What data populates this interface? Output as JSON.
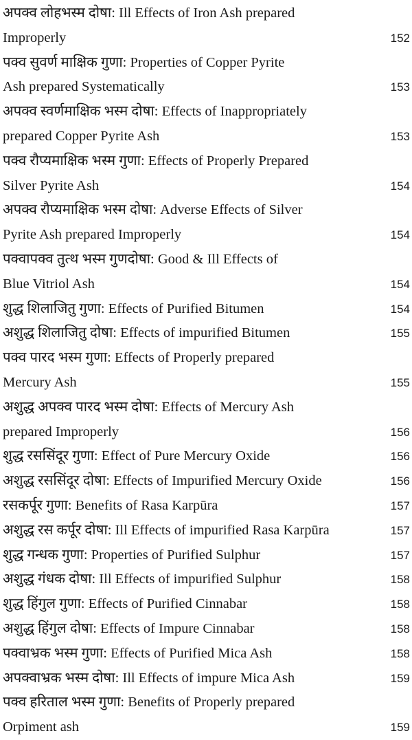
{
  "entries": [
    {
      "lines": [
        "अपक्व लोहभस्म दोषा: Ill Effects of Iron Ash prepared",
        "Improperly"
      ],
      "page": "152"
    },
    {
      "lines": [
        "पक्व सुवर्ण माक्षिक गुणा: Properties of Copper Pyrite",
        "Ash prepared Systematically"
      ],
      "page": "153"
    },
    {
      "lines": [
        "अपक्व स्वर्णमाक्षिक भस्म दोषा: Effects of Inappropriately",
        "prepared Copper Pyrite Ash"
      ],
      "page": "153"
    },
    {
      "lines": [
        "पक्व रौप्यमाक्षिक भस्म गुणा: Effects of Properly Prepared",
        "Silver Pyrite Ash"
      ],
      "page": "154"
    },
    {
      "lines": [
        "अपक्व रौप्यमाक्षिक भस्म दोषा: Adverse Effects of Silver",
        "Pyrite Ash prepared Improperly"
      ],
      "page": "154"
    },
    {
      "lines": [
        "पक्वापक्व तुत्थ भस्म गुणदोषा: Good & Ill Effects of",
        "Blue Vitriol Ash"
      ],
      "page": "154"
    },
    {
      "lines": [
        "शुद्ध शिलाजितु गुणा: Effects of Purified Bitumen"
      ],
      "page": "154"
    },
    {
      "lines": [
        "अशुद्ध शिलाजितु दोषा: Effects of impurified Bitumen"
      ],
      "page": "155"
    },
    {
      "lines": [
        "पक्व पारद भस्म गुणा: Effects of Properly prepared",
        "Mercury Ash"
      ],
      "page": "155"
    },
    {
      "lines": [
        "अशुद्ध अपक्व पारद भस्म दोषा: Effects of Mercury Ash",
        "prepared Improperly"
      ],
      "page": "156"
    },
    {
      "lines": [
        "शुद्ध रससिंदूर गुणा: Effect of Pure Mercury Oxide"
      ],
      "page": "156"
    },
    {
      "lines": [
        "अशुद्ध रससिंदूर दोषा: Effects of Impurified Mercury Oxide"
      ],
      "page": "156"
    },
    {
      "lines": [
        "रसकर्पूर गुणा: Benefits of Rasa Karpūra"
      ],
      "page": "157"
    },
    {
      "lines": [
        "अशुद्ध रस कर्पूर दोषा: Ill Effects of impurified Rasa Karpūra"
      ],
      "page": "157"
    },
    {
      "lines": [
        "शुद्ध गन्धक गुणा: Properties of Purified Sulphur"
      ],
      "page": "157"
    },
    {
      "lines": [
        "अशुद्ध गंधक दोषा: Ill Effects of impurified Sulphur"
      ],
      "page": "158"
    },
    {
      "lines": [
        "शुद्ध हिंगुल गुणा: Effects of Purified Cinnabar"
      ],
      "page": "158"
    },
    {
      "lines": [
        "अशुद्ध हिंगुल दोषा: Effects of Impure Cinnabar"
      ],
      "page": "158"
    },
    {
      "lines": [
        "पक्वाभ्रक भस्म गुणा: Effects of Purified Mica Ash"
      ],
      "page": "158"
    },
    {
      "lines": [
        "अपक्वाभ्रक भस्म दोषा: Ill Effects of impure Mica Ash"
      ],
      "page": "159"
    },
    {
      "lines": [
        "पक्व हरिताल भस्म गुणा: Benefits of Properly prepared",
        "Orpiment ash"
      ],
      "page": "159"
    }
  ]
}
